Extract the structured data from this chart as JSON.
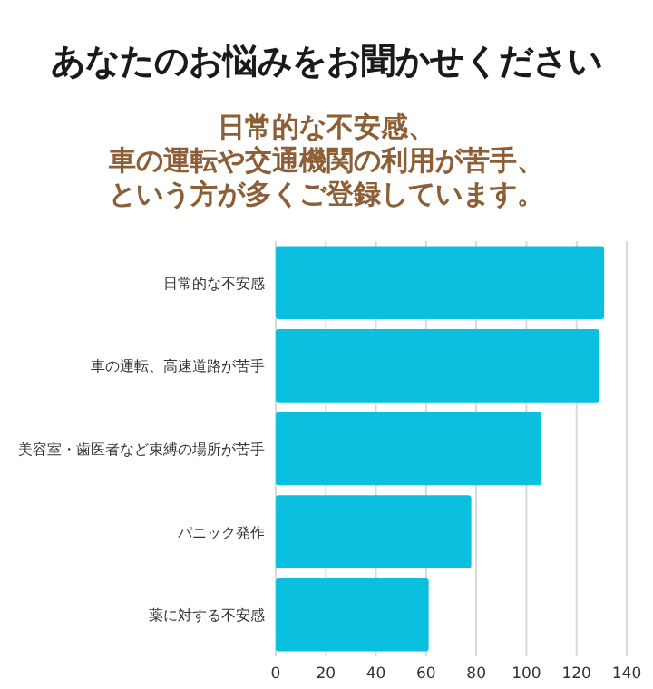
{
  "chart_data": {
    "type": "bar",
    "orientation": "horizontal",
    "title": "あなたのお悩みをお聞かせください",
    "subtitle": [
      "日常的な不安感、",
      "車の運転や交通機関の利用が苦手、",
      "という方が多くご登録しています。"
    ],
    "categories": [
      "日常的な不安感",
      "車の運転、高速道路が苦手",
      "美容室・歯医者など束縛の場所が苦手",
      "パニック発作",
      "薬に対する不安感"
    ],
    "values": [
      131,
      129,
      106,
      78,
      61
    ],
    "color": "#0bbfdf",
    "xlim": [
      0,
      140
    ],
    "xticks": [
      0,
      20,
      40,
      60,
      80,
      100,
      120,
      140
    ],
    "grid": "x"
  }
}
